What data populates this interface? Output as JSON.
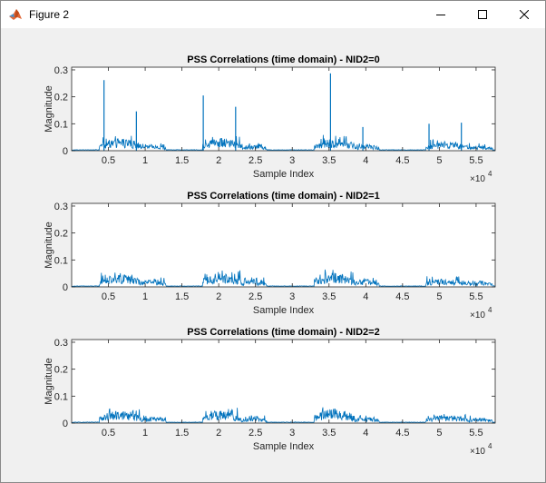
{
  "window": {
    "title": "Figure 2",
    "app_icon": "matlab-icon",
    "controls": [
      "minimize-icon",
      "maximize-icon",
      "close-icon"
    ]
  },
  "colors": {
    "series": "#0072bd",
    "axes": "#262626",
    "background": "#f0f0f0",
    "plot_bg": "#ffffff"
  },
  "chart_data": [
    {
      "type": "line",
      "title": "PSS Correlations (time domain) - NID2=0",
      "xlabel": "Sample Index",
      "ylabel": "Magnitude",
      "x_exponent": "×10",
      "x_exponent_power": "4",
      "xlim": [
        0,
        57600
      ],
      "ylim": [
        0,
        0.31
      ],
      "xticks": [
        0.5,
        1,
        1.5,
        2,
        2.5,
        3,
        3.5,
        4,
        4.5,
        5,
        5.5
      ],
      "xtick_labels": [
        "0.5",
        "1",
        "1.5",
        "2",
        "2.5",
        "3",
        "3.5",
        "4",
        "4.5",
        "5",
        "5.5"
      ],
      "yticks": [
        0,
        0.1,
        0.2,
        0.3
      ],
      "ytick_labels": [
        "0",
        "0.1",
        "0.2",
        "0.3"
      ],
      "noise_bursts": [
        {
          "start": 3800,
          "end": 9500,
          "level": 0.035,
          "peak": 0.055
        },
        {
          "start": 9500,
          "end": 12800,
          "level": 0.018,
          "peak": 0.03
        },
        {
          "start": 17800,
          "end": 23000,
          "level": 0.035,
          "peak": 0.055
        },
        {
          "start": 23000,
          "end": 26500,
          "level": 0.018,
          "peak": 0.03
        },
        {
          "start": 33000,
          "end": 38500,
          "level": 0.035,
          "peak": 0.06
        },
        {
          "start": 38500,
          "end": 41800,
          "level": 0.018,
          "peak": 0.03
        },
        {
          "start": 48200,
          "end": 53800,
          "level": 0.025,
          "peak": 0.045
        },
        {
          "start": 53800,
          "end": 57200,
          "level": 0.015,
          "peak": 0.03
        }
      ],
      "spikes": [
        {
          "x": 4400,
          "y": 0.262
        },
        {
          "x": 8800,
          "y": 0.146
        },
        {
          "x": 17900,
          "y": 0.205
        },
        {
          "x": 22300,
          "y": 0.163
        },
        {
          "x": 35200,
          "y": 0.287
        },
        {
          "x": 39600,
          "y": 0.088
        },
        {
          "x": 48600,
          "y": 0.1
        },
        {
          "x": 53000,
          "y": 0.104
        }
      ]
    },
    {
      "type": "line",
      "title": "PSS Correlations (time domain) - NID2=1",
      "xlabel": "Sample Index",
      "ylabel": "Magnitude",
      "x_exponent": "×10",
      "x_exponent_power": "4",
      "xlim": [
        0,
        57600
      ],
      "ylim": [
        0,
        0.31
      ],
      "xticks": [
        0.5,
        1,
        1.5,
        2,
        2.5,
        3,
        3.5,
        4,
        4.5,
        5,
        5.5
      ],
      "xtick_labels": [
        "0.5",
        "1",
        "1.5",
        "2",
        "2.5",
        "3",
        "3.5",
        "4",
        "4.5",
        "5",
        "5.5"
      ],
      "yticks": [
        0,
        0.1,
        0.2,
        0.3
      ],
      "ytick_labels": [
        "0",
        "0.1",
        "0.2",
        "0.3"
      ],
      "noise_bursts": [
        {
          "start": 3800,
          "end": 9500,
          "level": 0.035,
          "peak": 0.055
        },
        {
          "start": 9500,
          "end": 12800,
          "level": 0.022,
          "peak": 0.035
        },
        {
          "start": 17800,
          "end": 23000,
          "level": 0.04,
          "peak": 0.065
        },
        {
          "start": 23000,
          "end": 26500,
          "level": 0.022,
          "peak": 0.035
        },
        {
          "start": 33000,
          "end": 38500,
          "level": 0.04,
          "peak": 0.065
        },
        {
          "start": 38500,
          "end": 41800,
          "level": 0.022,
          "peak": 0.035
        },
        {
          "start": 48200,
          "end": 53800,
          "level": 0.025,
          "peak": 0.04
        },
        {
          "start": 53800,
          "end": 57200,
          "level": 0.018,
          "peak": 0.03
        }
      ],
      "spikes": []
    },
    {
      "type": "line",
      "title": "PSS Correlations (time domain) - NID2=2",
      "xlabel": "Sample Index",
      "ylabel": "Magnitude",
      "x_exponent": "×10",
      "x_exponent_power": "4",
      "xlim": [
        0,
        57600
      ],
      "ylim": [
        0,
        0.31
      ],
      "xticks": [
        0.5,
        1,
        1.5,
        2,
        2.5,
        3,
        3.5,
        4,
        4.5,
        5,
        5.5
      ],
      "xtick_labels": [
        "0.5",
        "1",
        "1.5",
        "2",
        "2.5",
        "3",
        "3.5",
        "4",
        "4.5",
        "5",
        "5.5"
      ],
      "yticks": [
        0,
        0.1,
        0.2,
        0.3
      ],
      "ytick_labels": [
        "0",
        "0.1",
        "0.2",
        "0.3"
      ],
      "noise_bursts": [
        {
          "start": 3800,
          "end": 9500,
          "level": 0.035,
          "peak": 0.055
        },
        {
          "start": 9500,
          "end": 12800,
          "level": 0.018,
          "peak": 0.03
        },
        {
          "start": 17800,
          "end": 23000,
          "level": 0.035,
          "peak": 0.058
        },
        {
          "start": 23000,
          "end": 26500,
          "level": 0.018,
          "peak": 0.03
        },
        {
          "start": 33000,
          "end": 38500,
          "level": 0.04,
          "peak": 0.06
        },
        {
          "start": 38500,
          "end": 41800,
          "level": 0.018,
          "peak": 0.03
        },
        {
          "start": 48200,
          "end": 53800,
          "level": 0.022,
          "peak": 0.035
        },
        {
          "start": 53800,
          "end": 57200,
          "level": 0.015,
          "peak": 0.028
        }
      ],
      "spikes": []
    }
  ]
}
